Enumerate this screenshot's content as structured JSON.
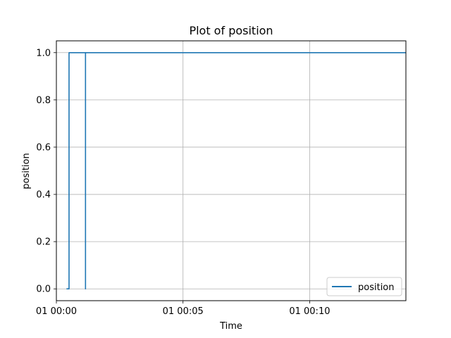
{
  "chart_data": {
    "type": "line",
    "title": "Plot of position",
    "xlabel": "Time",
    "ylabel": "position",
    "x_unit": "minutes",
    "xlim": [
      0,
      13.8
    ],
    "ylim": [
      -0.05,
      1.05
    ],
    "x_ticks": [
      {
        "value": 0,
        "label": "01 00:00"
      },
      {
        "value": 5,
        "label": "01 00:05"
      },
      {
        "value": 10,
        "label": "01 00:10"
      }
    ],
    "y_ticks": [
      {
        "value": 0.0,
        "label": "0.0"
      },
      {
        "value": 0.2,
        "label": "0.2"
      },
      {
        "value": 0.4,
        "label": "0.4"
      },
      {
        "value": 0.6,
        "label": "0.6"
      },
      {
        "value": 0.8,
        "label": "0.8"
      },
      {
        "value": 1.0,
        "label": "1.0"
      }
    ],
    "grid": true,
    "legend_position": "bottom-right",
    "series": [
      {
        "name": "position",
        "color": "#1f77b4",
        "x": [
          0.4,
          0.5,
          0.5,
          1.15,
          1.15,
          1.15,
          13.8
        ],
        "y": [
          0,
          0,
          1,
          1,
          0,
          1,
          1
        ]
      }
    ]
  }
}
